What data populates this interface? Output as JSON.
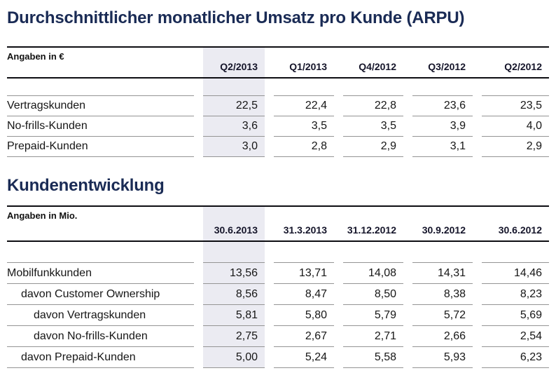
{
  "colors": {
    "title_color": "#1a2b55",
    "highlight": "#ebebf2",
    "rule_dark": "#0d0d12",
    "rule_gray": "#949494"
  },
  "section1": {
    "title": "Durchschnittlicher monatlicher Umsatz pro Kunde (ARPU)",
    "table": {
      "unit_label": "Angaben in €",
      "highlighted_column": "Q2/2013",
      "columns": [
        "Q2/2013",
        "Q1/2013",
        "Q4/2012",
        "Q3/2012",
        "Q2/2012"
      ],
      "rows": [
        {
          "label": "Vertragskunden",
          "indent": 0,
          "values": [
            "22,5",
            "22,4",
            "22,8",
            "23,6",
            "23,5"
          ]
        },
        {
          "label": "No-frills-Kunden",
          "indent": 0,
          "values": [
            "3,6",
            "3,5",
            "3,5",
            "3,9",
            "4,0"
          ]
        },
        {
          "label": "Prepaid-Kunden",
          "indent": 0,
          "values": [
            "3,0",
            "2,8",
            "2,9",
            "3,1",
            "2,9"
          ]
        }
      ]
    }
  },
  "section2": {
    "title": "Kundenentwicklung",
    "table": {
      "unit_label": "Angaben in Mio.",
      "highlighted_column": "30.6.2013",
      "columns": [
        "30.6.2013",
        "31.3.2013",
        "31.12.2012",
        "30.9.2012",
        "30.6.2012"
      ],
      "rows": [
        {
          "label": "Mobilfunkkunden",
          "indent": 0,
          "values": [
            "13,56",
            "13,71",
            "14,08",
            "14,31",
            "14,46"
          ]
        },
        {
          "label": "davon Customer Ownership",
          "indent": 1,
          "values": [
            "8,56",
            "8,47",
            "8,50",
            "8,38",
            "8,23"
          ]
        },
        {
          "label": "davon Vertragskunden",
          "indent": 2,
          "values": [
            "5,81",
            "5,80",
            "5,79",
            "5,72",
            "5,69"
          ]
        },
        {
          "label": "davon No-frills-Kunden",
          "indent": 2,
          "values": [
            "2,75",
            "2,67",
            "2,71",
            "2,66",
            "2,54"
          ]
        },
        {
          "label": "davon Prepaid-Kunden",
          "indent": 1,
          "values": [
            "5,00",
            "5,24",
            "5,58",
            "5,93",
            "6,23"
          ]
        }
      ]
    }
  }
}
